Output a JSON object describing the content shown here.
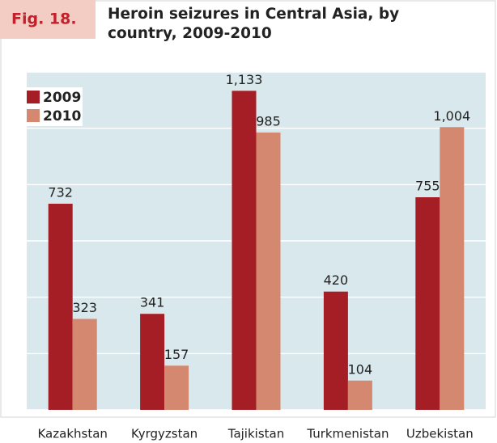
{
  "chart_data": {
    "type": "bar",
    "figure_label": "Fig. 18.",
    "title_lines": [
      "Heroin seizures in Central Asia, by",
      "country, 2009-2010"
    ],
    "categories": [
      "Kazakhstan",
      "Kyrgyzstan",
      "Tajikistan",
      "Turkmenistan",
      "Uzbekistan"
    ],
    "series": [
      {
        "name": "2009",
        "color": "#a61e25",
        "values": [
          732,
          341,
          1133,
          420,
          755
        ],
        "value_labels": [
          "732",
          "341",
          "1,133",
          "420",
          "755"
        ]
      },
      {
        "name": "2010",
        "color": "#d4886f",
        "values": [
          323,
          157,
          985,
          104,
          1004
        ],
        "value_labels": [
          "323",
          "157",
          "985",
          "104",
          "1,004"
        ]
      }
    ],
    "ylim": [
      0,
      1200
    ],
    "yticks": [
      0,
      200,
      400,
      600,
      800,
      1000,
      1200
    ],
    "grid": true,
    "legend": "top-left"
  }
}
